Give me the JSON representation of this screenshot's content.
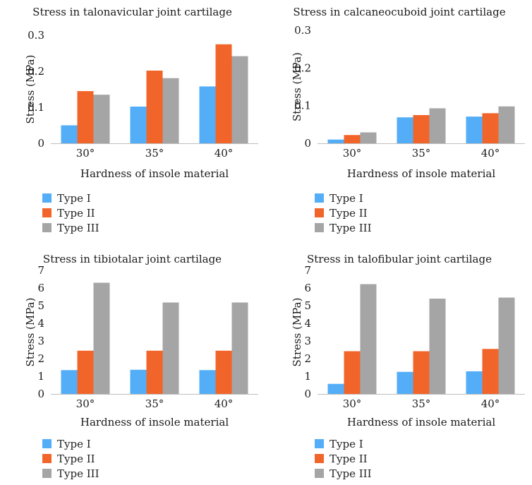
{
  "colors": {
    "type_i": "#54AEF7",
    "type_ii": "#F2652A",
    "type_iii": "#A5A5A5",
    "axis": "#BFBFBF"
  },
  "chart_data": [
    {
      "type": "bar",
      "title": "Stress in talonavicular joint cartilage",
      "xlabel": "Hardness of insole material",
      "ylabel": "Stress (MPa)",
      "categories": [
        "30°",
        "35°",
        "40°"
      ],
      "ylim": [
        0,
        0.3
      ],
      "yticks": [
        "0",
        "0.1",
        "0.2",
        "0.3"
      ],
      "ytick_values": [
        0,
        0.1,
        0.2,
        0.3
      ],
      "series": [
        {
          "name": "Type I",
          "values": [
            0.05,
            0.102,
            0.158
          ]
        },
        {
          "name": "Type II",
          "values": [
            0.145,
            0.202,
            0.275
          ]
        },
        {
          "name": "Type III",
          "values": [
            0.135,
            0.181,
            0.242
          ]
        }
      ]
    },
    {
      "type": "bar",
      "title": "Stress in calcaneocuboid joint cartilage",
      "xlabel": "Hardness of insole material",
      "ylabel": "Stress (MPa)",
      "categories": [
        "30°",
        "35°",
        "40°"
      ],
      "ylim": [
        0,
        0.3
      ],
      "yticks": [
        "0",
        "0.1",
        "0.2",
        "0.3"
      ],
      "ytick_values": [
        0,
        0.1,
        0.2,
        0.3
      ],
      "series": [
        {
          "name": "Type I",
          "values": [
            0.01,
            0.069,
            0.071
          ]
        },
        {
          "name": "Type II",
          "values": [
            0.022,
            0.075,
            0.08
          ]
        },
        {
          "name": "Type III",
          "values": [
            0.029,
            0.093,
            0.098
          ]
        }
      ]
    },
    {
      "type": "bar",
      "title": "Stress in tibiotalar joint cartilage",
      "xlabel": "Hardness of insole material",
      "ylabel": "Stress (MPa)",
      "categories": [
        "30°",
        "35°",
        "40°"
      ],
      "ylim": [
        0,
        7
      ],
      "yticks": [
        "0",
        "1",
        "2",
        "3",
        "4",
        "5",
        "6",
        "7"
      ],
      "ytick_values": [
        0,
        1,
        2,
        3,
        4,
        5,
        6,
        7
      ],
      "series": [
        {
          "name": "Type I",
          "values": [
            1.35,
            1.37,
            1.35
          ]
        },
        {
          "name": "Type II",
          "values": [
            2.45,
            2.45,
            2.45
          ]
        },
        {
          "name": "Type III",
          "values": [
            6.3,
            5.18,
            5.18
          ]
        }
      ]
    },
    {
      "type": "bar",
      "title": "Stress in talofibular joint cartilage",
      "xlabel": "Hardness of insole material",
      "ylabel": "Stress (MPa)",
      "categories": [
        "30°",
        "35°",
        "40°"
      ],
      "ylim": [
        0,
        7
      ],
      "yticks": [
        "0",
        "1",
        "2",
        "3",
        "4",
        "5",
        "6",
        "7"
      ],
      "ytick_values": [
        0,
        1,
        2,
        3,
        4,
        5,
        6,
        7
      ],
      "series": [
        {
          "name": "Type I",
          "values": [
            0.57,
            1.25,
            1.28
          ]
        },
        {
          "name": "Type II",
          "values": [
            2.42,
            2.42,
            2.55
          ]
        },
        {
          "name": "Type III",
          "values": [
            6.22,
            5.4,
            5.46
          ]
        }
      ]
    }
  ],
  "legends": [
    {
      "items": [
        "Type I",
        "Type II",
        "Type III"
      ]
    },
    {
      "items": [
        "Type I",
        "Type II",
        "Type III"
      ]
    },
    {
      "items": [
        "Type I",
        "Type II",
        "Type III"
      ]
    },
    {
      "items": [
        "Type I",
        "Type II",
        "Type III"
      ]
    }
  ]
}
